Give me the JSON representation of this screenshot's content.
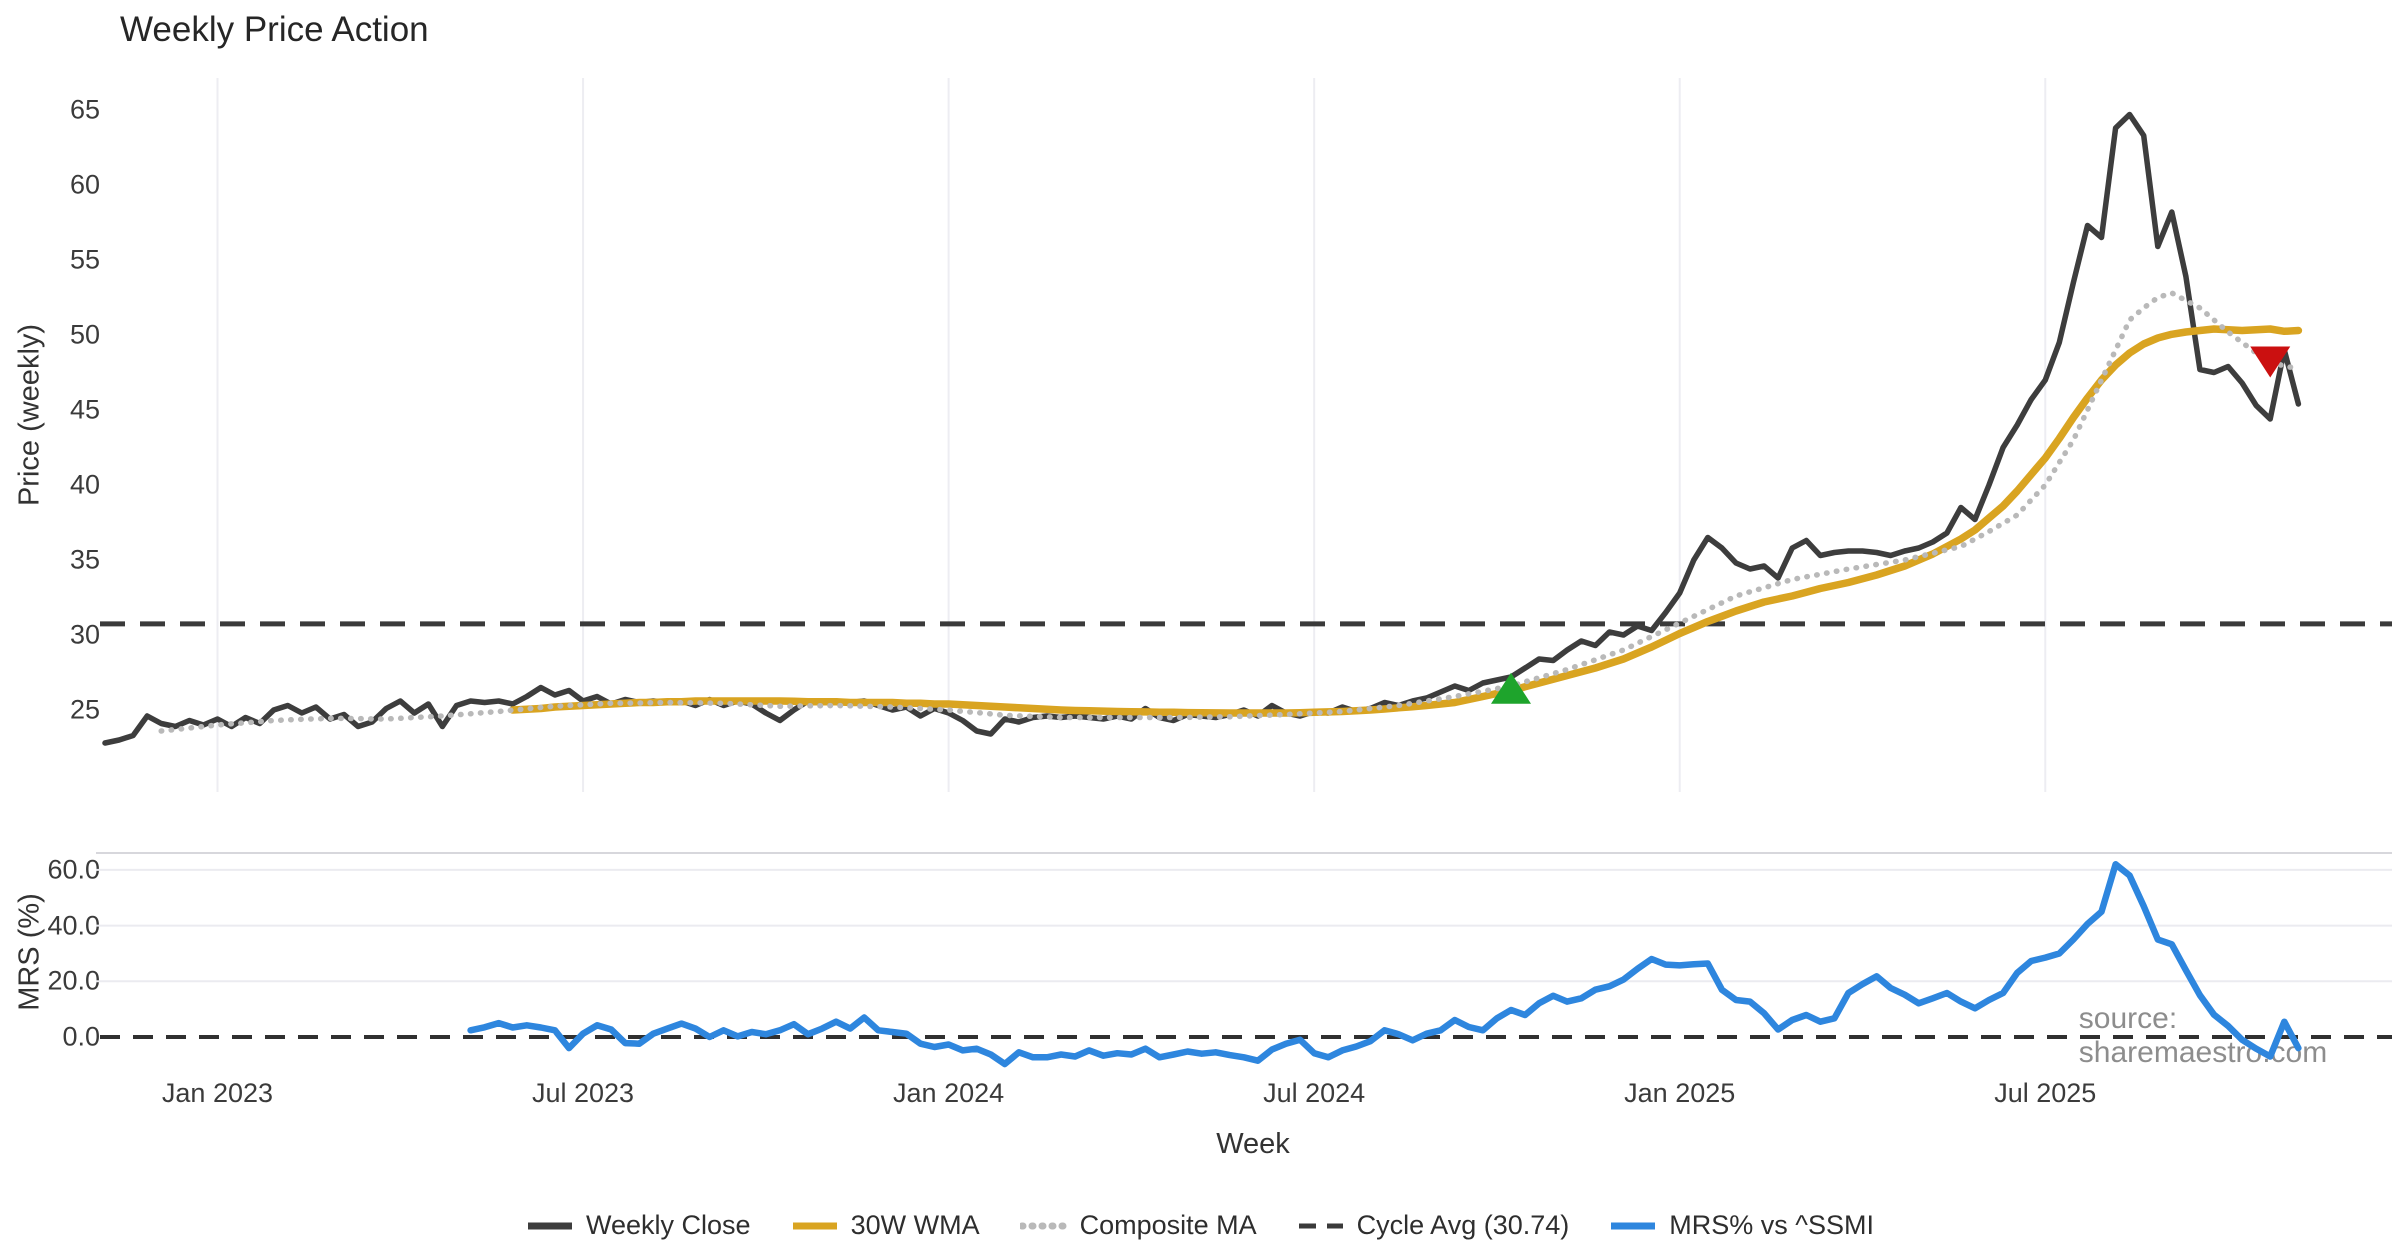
{
  "title": "Weekly Price Action",
  "watermark": "source: sharemaestro.com",
  "axes": {
    "price": {
      "label": "Price (weekly)",
      "ticks": [
        65,
        60,
        55,
        50,
        45,
        40,
        35,
        30,
        25
      ]
    },
    "mrs": {
      "label": "MRS (%)",
      "ticks": [
        "60.0",
        "40.0",
        "20.0",
        "0.0"
      ],
      "tick_values": [
        60,
        40,
        20,
        0
      ]
    },
    "x": {
      "label": "Week",
      "ticks": [
        {
          "label": "Jan 2023",
          "week": 8
        },
        {
          "label": "Jul 2023",
          "week": 34
        },
        {
          "label": "Jan 2024",
          "week": 60
        },
        {
          "label": "Jul 2024",
          "week": 86
        },
        {
          "label": "Jan 2025",
          "week": 112
        },
        {
          "label": "Jul 2025",
          "week": 138
        }
      ]
    }
  },
  "legend": [
    {
      "id": "weekly-close",
      "label": "Weekly Close",
      "color": "#3d3d3d",
      "style": "solid"
    },
    {
      "id": "wma",
      "label": "30W WMA",
      "color": "#d9a421",
      "style": "solid"
    },
    {
      "id": "composite",
      "label": "Composite MA",
      "color": "#b9b9b9",
      "style": "dotted"
    },
    {
      "id": "cycle-avg",
      "label": "Cycle Avg (30.74)",
      "color": "#3a3a3a",
      "style": "dashed"
    },
    {
      "id": "mrs",
      "label": "MRS% vs ^SSMI",
      "color": "#2e86de",
      "style": "solid"
    }
  ],
  "colors": {
    "close": "#3d3d3d",
    "wma": "#d9a421",
    "composite": "#b9b9b9",
    "dashed": "#3a3a3a",
    "mrs": "#2e86de",
    "buy": "#1ea42c",
    "sell": "#cb1010",
    "grid": "#ededf2",
    "panel_border": "#d7d7dc",
    "text": "#3b3b3b"
  },
  "chart_data": {
    "type": "line",
    "title": "Weekly Price Action",
    "xlabel": "Week",
    "ylabel_price": "Price (weekly)",
    "ylabel_mrs": "MRS (%)",
    "x_unit": "weekly close, week 0 = early Nov 2022; ticks at Jan 2023=w8, Jul 2023=w34, Jan 2024=w60, Jul 2024=w86, Jan 2025=w112, Jul 2025=w138",
    "weeks_total": 157,
    "price_ylim": [
      21.5,
      66.8
    ],
    "mrs_ylim": [
      -12,
      66
    ],
    "grid": "vertical on price panel at half-year ticks; horizontal on MRS panel",
    "legend_position": "bottom center",
    "series": [
      {
        "name": "Weekly Close",
        "panel": "price",
        "color": "#3d3d3d",
        "style": "solid",
        "width": 5.5,
        "start_week": 0,
        "values": [
          22.8,
          23.0,
          23.3,
          24.6,
          24.1,
          23.9,
          24.3,
          24.0,
          24.4,
          23.9,
          24.5,
          24.1,
          25.0,
          25.3,
          24.8,
          25.2,
          24.4,
          24.7,
          23.9,
          24.2,
          25.1,
          25.6,
          24.8,
          25.4,
          23.9,
          25.3,
          25.6,
          25.5,
          25.6,
          25.4,
          25.9,
          26.5,
          26.0,
          26.3,
          25.6,
          25.9,
          25.4,
          25.7,
          25.5,
          25.6,
          25.5,
          25.6,
          25.3,
          25.7,
          25.3,
          25.6,
          25.4,
          24.8,
          24.3,
          25.0,
          25.6,
          25.5,
          25.6,
          25.5,
          25.6,
          25.3,
          25.0,
          25.2,
          24.6,
          25.1,
          24.8,
          24.3,
          23.6,
          23.4,
          24.4,
          24.2,
          24.5,
          24.6,
          24.5,
          24.6,
          24.5,
          24.4,
          24.6,
          24.4,
          25.1,
          24.5,
          24.3,
          24.7,
          24.6,
          24.5,
          24.7,
          25.0,
          24.6,
          25.3,
          24.8,
          24.6,
          24.9,
          24.8,
          25.2,
          24.9,
          25.1,
          25.5,
          25.3,
          25.6,
          25.8,
          26.2,
          26.6,
          26.3,
          26.8,
          27.0,
          27.2,
          27.8,
          28.4,
          28.3,
          29.0,
          29.6,
          29.3,
          30.2,
          30.0,
          30.6,
          30.3,
          31.5,
          32.8,
          35.0,
          36.5,
          35.8,
          34.8,
          34.4,
          34.6,
          33.8,
          35.8,
          36.3,
          35.3,
          35.5,
          35.6,
          35.6,
          35.5,
          35.3,
          35.6,
          35.8,
          36.2,
          36.8,
          38.5,
          37.7,
          40.0,
          42.5,
          44.0,
          45.7,
          47.0,
          49.5,
          53.5,
          57.3,
          56.5,
          63.8,
          64.7,
          63.3,
          55.9,
          58.2,
          53.9,
          47.7,
          47.5,
          47.9,
          46.8,
          45.3,
          44.4,
          49.0,
          45.4
        ]
      },
      {
        "name": "30W WMA",
        "panel": "price",
        "color": "#d9a421",
        "style": "solid",
        "width": 7.5,
        "start_week": 29,
        "values": [
          25.0,
          25.05,
          25.1,
          25.2,
          25.25,
          25.3,
          25.35,
          25.4,
          25.45,
          25.5,
          25.5,
          25.55,
          25.55,
          25.6,
          25.6,
          25.6,
          25.6,
          25.6,
          25.6,
          25.6,
          25.58,
          25.55,
          25.55,
          25.55,
          25.5,
          25.5,
          25.5,
          25.5,
          25.45,
          25.45,
          25.4,
          25.4,
          25.35,
          25.3,
          25.25,
          25.2,
          25.15,
          25.1,
          25.05,
          25.0,
          24.97,
          24.95,
          24.93,
          24.9,
          24.88,
          24.87,
          24.85,
          24.85,
          24.83,
          24.82,
          24.81,
          24.8,
          24.8,
          24.8,
          24.8,
          24.8,
          24.82,
          24.85,
          24.87,
          24.9,
          24.95,
          25.0,
          25.07,
          25.15,
          25.22,
          25.3,
          25.4,
          25.5,
          25.7,
          25.9,
          26.1,
          26.3,
          26.55,
          26.8,
          27.05,
          27.3,
          27.55,
          27.8,
          28.1,
          28.4,
          28.8,
          29.2,
          29.65,
          30.1,
          30.5,
          30.9,
          31.25,
          31.6,
          31.9,
          32.2,
          32.4,
          32.6,
          32.85,
          33.1,
          33.3,
          33.5,
          33.75,
          34.0,
          34.3,
          34.6,
          35.0,
          35.4,
          35.9,
          36.4,
          37.0,
          37.8,
          38.6,
          39.6,
          40.7,
          41.8,
          43.1,
          44.5,
          45.8,
          47.0,
          48.0,
          48.8,
          49.4,
          49.8,
          50.05,
          50.2,
          50.3,
          50.4,
          50.35,
          50.3,
          50.35,
          50.4,
          50.25,
          50.3
        ]
      },
      {
        "name": "Composite MA",
        "panel": "price",
        "color": "#b9b9b9",
        "style": "dotted",
        "width": 5.5,
        "start_week": 4,
        "values": [
          23.6,
          23.7,
          23.8,
          23.9,
          24.0,
          24.08,
          24.15,
          24.23,
          24.3,
          24.34,
          24.38,
          24.41,
          24.45,
          24.44,
          24.43,
          24.41,
          24.4,
          24.45,
          24.5,
          24.55,
          24.6,
          24.68,
          24.75,
          24.83,
          24.9,
          24.99,
          25.08,
          25.17,
          25.25,
          25.3,
          25.35,
          25.4,
          25.45,
          25.46,
          25.47,
          25.49,
          25.5,
          25.49,
          25.48,
          25.46,
          25.45,
          25.4,
          25.35,
          25.3,
          25.25,
          25.26,
          25.28,
          25.29,
          25.3,
          25.28,
          25.25,
          25.23,
          25.2,
          25.15,
          25.1,
          25.05,
          25.0,
          24.91,
          24.83,
          24.74,
          24.65,
          24.61,
          24.58,
          24.54,
          24.5,
          24.5,
          24.5,
          24.5,
          24.5,
          24.5,
          24.5,
          24.5,
          24.5,
          24.51,
          24.53,
          24.54,
          24.55,
          24.59,
          24.63,
          24.66,
          24.7,
          24.75,
          24.8,
          24.85,
          24.9,
          25.0,
          25.1,
          25.2,
          25.3,
          25.45,
          25.6,
          25.75,
          25.9,
          26.08,
          26.25,
          26.43,
          26.6,
          26.88,
          27.15,
          27.43,
          27.7,
          28.03,
          28.35,
          28.68,
          29.0,
          29.45,
          29.9,
          30.35,
          30.8,
          31.25,
          31.7,
          32.15,
          32.6,
          32.88,
          33.15,
          33.43,
          33.7,
          33.88,
          34.05,
          34.23,
          34.4,
          34.55,
          34.7,
          34.85,
          35.0,
          35.23,
          35.45,
          35.68,
          35.9,
          36.4,
          36.9,
          37.45,
          38.0,
          39.0,
          40.0,
          41.5,
          43.0,
          45.0,
          47.0,
          49.0,
          51.0,
          51.8,
          52.5,
          52.8,
          52.3,
          51.8,
          51.0,
          50.2,
          49.5,
          48.8,
          48.3,
          47.9,
          47.8
        ]
      },
      {
        "name": "MRS% vs ^SSMI",
        "panel": "mrs",
        "color": "#2e86de",
        "style": "solid",
        "width": 6.5,
        "start_week": 26,
        "values": [
          2.4,
          3.5,
          5.0,
          3.4,
          4.2,
          3.4,
          2.4,
          -4.0,
          1.2,
          4.2,
          2.7,
          -2.2,
          -2.4,
          1.2,
          3.0,
          4.8,
          3.0,
          0.0,
          2.4,
          0.2,
          1.8,
          1.0,
          2.4,
          4.6,
          1.0,
          3.0,
          5.5,
          3.0,
          7.0,
          2.4,
          1.8,
          1.2,
          -2.4,
          -3.6,
          -2.7,
          -4.8,
          -4.2,
          -6.3,
          -9.7,
          -5.5,
          -7.3,
          -7.3,
          -6.3,
          -7.0,
          -4.8,
          -6.7,
          -5.8,
          -6.3,
          -4.2,
          -7.3,
          -6.3,
          -5.2,
          -6.0,
          -5.5,
          -6.5,
          -7.3,
          -8.5,
          -4.5,
          -2.4,
          -1.0,
          -5.8,
          -7.3,
          -4.8,
          -3.4,
          -1.5,
          2.4,
          1.0,
          -1.2,
          1.2,
          2.4,
          6.1,
          3.6,
          2.4,
          6.7,
          9.7,
          7.9,
          12.1,
          14.8,
          12.7,
          13.9,
          17.0,
          18.2,
          20.6,
          24.5,
          28.0,
          26.0,
          25.7,
          26.1,
          26.4,
          17.0,
          13.3,
          12.7,
          8.5,
          2.7,
          6.1,
          7.9,
          5.5,
          6.7,
          15.8,
          19.0,
          21.8,
          17.6,
          15.2,
          12.1,
          13.9,
          15.8,
          12.7,
          10.3,
          13.3,
          15.8,
          23.0,
          27.3,
          28.5,
          30.0,
          35.0,
          40.6,
          45.0,
          62.0,
          58.0,
          47.0,
          35.0,
          33.3,
          24.0,
          15.0,
          8.0,
          4.0,
          -1.0,
          -4.2,
          -7.0,
          5.5,
          -4.0
        ]
      }
    ],
    "hlines": [
      {
        "name": "Cycle Avg (30.74)",
        "panel": "price",
        "value": 30.74,
        "color": "#3a3a3a",
        "style": "dashed"
      },
      {
        "name": "Zero Line",
        "panel": "mrs",
        "value": 0,
        "color": "#303030",
        "style": "dashed"
      }
    ],
    "markers": [
      {
        "name": "buy-signal",
        "shape": "triangle-up",
        "color": "#1ea42c",
        "week": 100,
        "value": 26.35
      },
      {
        "name": "sell-signal",
        "shape": "triangle-down",
        "color": "#cb1010",
        "week": 154,
        "value": 48.3
      }
    ]
  }
}
